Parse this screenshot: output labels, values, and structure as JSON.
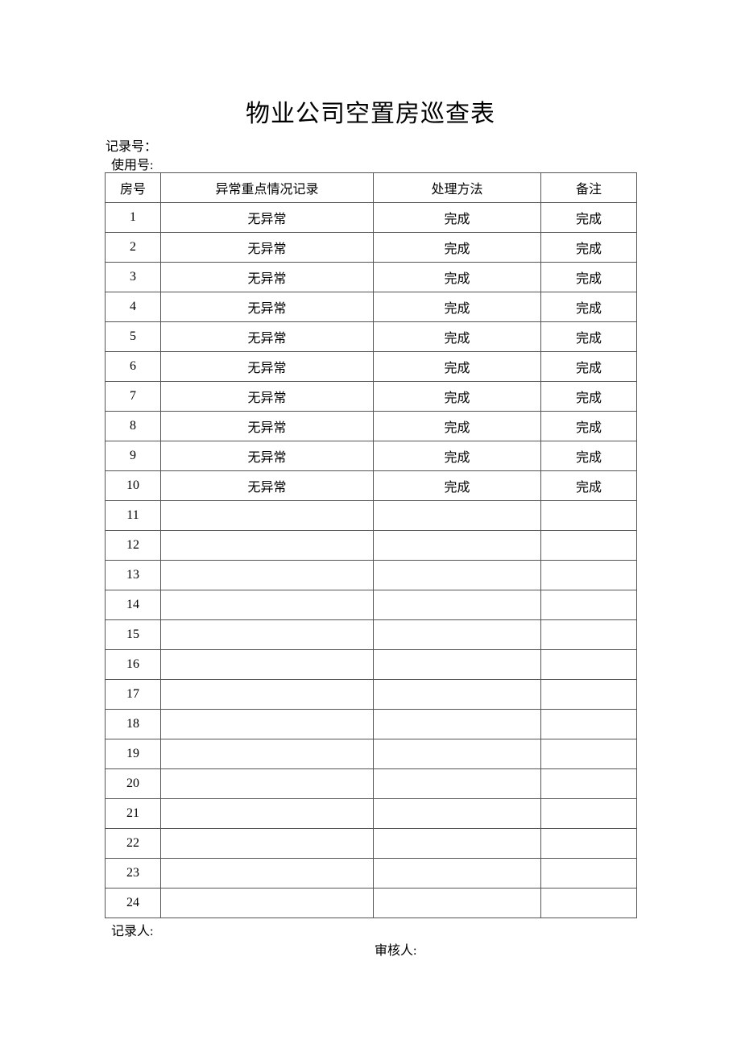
{
  "title": "物业公司空置房巡查表",
  "record_no_label": "记录号：",
  "usage_no_label": "使用号:",
  "table": {
    "headers": [
      "房号",
      "异常重点情况记录",
      "处理方法",
      "备注"
    ],
    "rows": [
      [
        "1",
        "无异常",
        "完成",
        "完成"
      ],
      [
        "2",
        "无异常",
        "完成",
        "完成"
      ],
      [
        "3",
        "无异常",
        "完成",
        "完成"
      ],
      [
        "4",
        "无异常",
        "完成",
        "完成"
      ],
      [
        "5",
        "无异常",
        "完成",
        "完成"
      ],
      [
        "6",
        "无异常",
        "完成",
        "完成"
      ],
      [
        "7",
        "无异常",
        "完成",
        "完成"
      ],
      [
        "8",
        "无异常",
        "完成",
        "完成"
      ],
      [
        "9",
        "无异常",
        "完成",
        "完成"
      ],
      [
        "10",
        "无异常",
        "完成",
        "完成"
      ],
      [
        "11",
        "",
        "",
        ""
      ],
      [
        "12",
        "",
        "",
        ""
      ],
      [
        "13",
        "",
        "",
        ""
      ],
      [
        "14",
        "",
        "",
        ""
      ],
      [
        "15",
        "",
        "",
        ""
      ],
      [
        "16",
        "",
        "",
        ""
      ],
      [
        "17",
        "",
        "",
        ""
      ],
      [
        "18",
        "",
        "",
        ""
      ],
      [
        "19",
        "",
        "",
        ""
      ],
      [
        "20",
        "",
        "",
        ""
      ],
      [
        "21",
        "",
        "",
        ""
      ],
      [
        "22",
        "",
        "",
        ""
      ],
      [
        "23",
        "",
        "",
        ""
      ],
      [
        "24",
        "",
        "",
        ""
      ]
    ]
  },
  "recorder_label": "记录人:",
  "reviewer_label": "审核人:"
}
